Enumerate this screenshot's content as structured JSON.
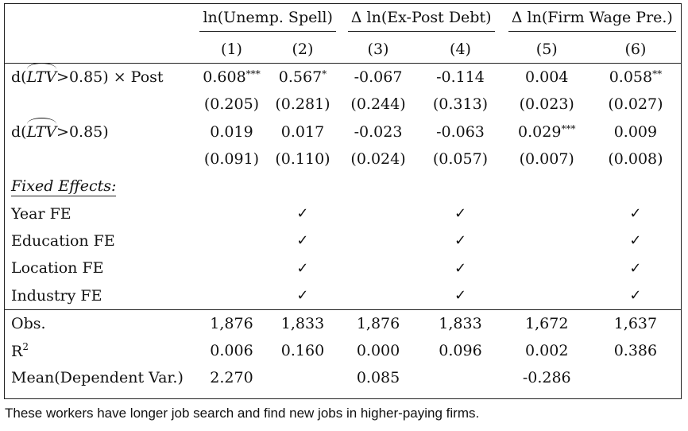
{
  "table": {
    "groups": [
      "ln(Unemp. Spell)",
      "Δ ln(Ex-Post Debt)",
      "Δ ln(Firm Wage Pre.)"
    ],
    "columns": [
      "(1)",
      "(2)",
      "(3)",
      "(4)",
      "(5)",
      "(6)"
    ],
    "row1": {
      "label_pre": "d(",
      "label_hat": "LTV",
      "label_post": ">0.85) × Post",
      "coefs": [
        "0.608",
        "0.567",
        "-0.067",
        "-0.114",
        "0.004",
        "0.058"
      ],
      "stars": [
        "***",
        "*",
        "",
        "",
        "",
        "**"
      ],
      "ses": [
        "(0.205)",
        "(0.281)",
        "(0.244)",
        "(0.313)",
        "(0.023)",
        "(0.027)"
      ]
    },
    "row2": {
      "label_pre": "d(",
      "label_hat": "LTV",
      "label_post": ">0.85)",
      "coefs": [
        "0.019",
        "0.017",
        "-0.023",
        "-0.063",
        "0.029",
        "0.009"
      ],
      "stars": [
        "",
        "",
        "",
        "",
        "***",
        ""
      ],
      "ses": [
        "(0.091)",
        "(0.110)",
        "(0.024)",
        "(0.057)",
        "(0.007)",
        "(0.008)"
      ]
    },
    "fixed_effects_label": "Fixed Effects:",
    "fe_rows": [
      {
        "label": "Year FE",
        "marks": [
          "",
          "✓",
          "",
          "✓",
          "",
          "✓"
        ]
      },
      {
        "label": "Education FE",
        "marks": [
          "",
          "✓",
          "",
          "✓",
          "",
          "✓"
        ]
      },
      {
        "label": "Location FE",
        "marks": [
          "",
          "✓",
          "",
          "✓",
          "",
          "✓"
        ]
      },
      {
        "label": "Industry FE",
        "marks": [
          "",
          "✓",
          "",
          "✓",
          "",
          "✓"
        ]
      }
    ],
    "obs": {
      "label": "Obs.",
      "values": [
        "1,876",
        "1,833",
        "1,876",
        "1,833",
        "1,672",
        "1,637"
      ]
    },
    "r2": {
      "label_base": "R",
      "label_sup": "2",
      "values": [
        "0.006",
        "0.160",
        "0.000",
        "0.096",
        "0.002",
        "0.386"
      ]
    },
    "mean": {
      "label": "Mean(Dependent Var.)",
      "values": [
        "2.270",
        "",
        "0.085",
        "",
        "-0.286",
        ""
      ]
    }
  },
  "caption": "These workers have longer job search and find new jobs in higher-paying firms."
}
